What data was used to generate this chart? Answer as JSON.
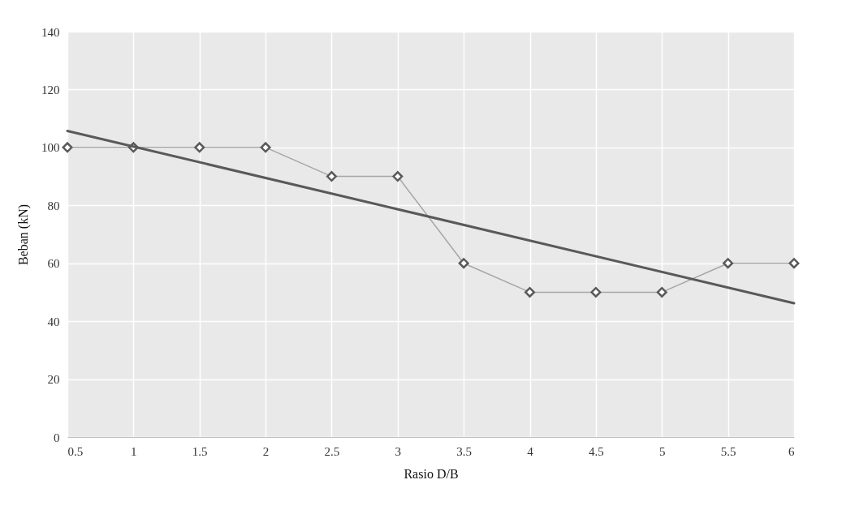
{
  "chart_data": {
    "type": "line",
    "xlabel": "Rasio D/B",
    "ylabel": "Beban (kN)",
    "x": [
      0.5,
      1,
      1.5,
      2,
      2.5,
      3,
      3.5,
      4,
      4.5,
      5,
      5.5,
      6
    ],
    "series": [
      {
        "color": "#a6a6a6",
        "values": [
          100,
          100,
          100,
          100,
          90,
          90,
          60,
          50,
          50,
          50,
          60,
          60
        ],
        "marker": "diamond"
      },
      {
        "color": "#595959",
        "x": [
          0.5,
          6
        ],
        "values": [
          105.7,
          46.2
        ],
        "marker": "none"
      }
    ],
    "xlim": [
      0.5,
      6
    ],
    "xticks": [
      0.5,
      1,
      1.5,
      2,
      2.5,
      3,
      3.5,
      4,
      4.5,
      5,
      5.5,
      6
    ],
    "ylim": [
      0,
      140
    ],
    "yticks": [
      0,
      20,
      40,
      60,
      80,
      100,
      120,
      140
    ],
    "grid": true,
    "line_style": "solid"
  }
}
